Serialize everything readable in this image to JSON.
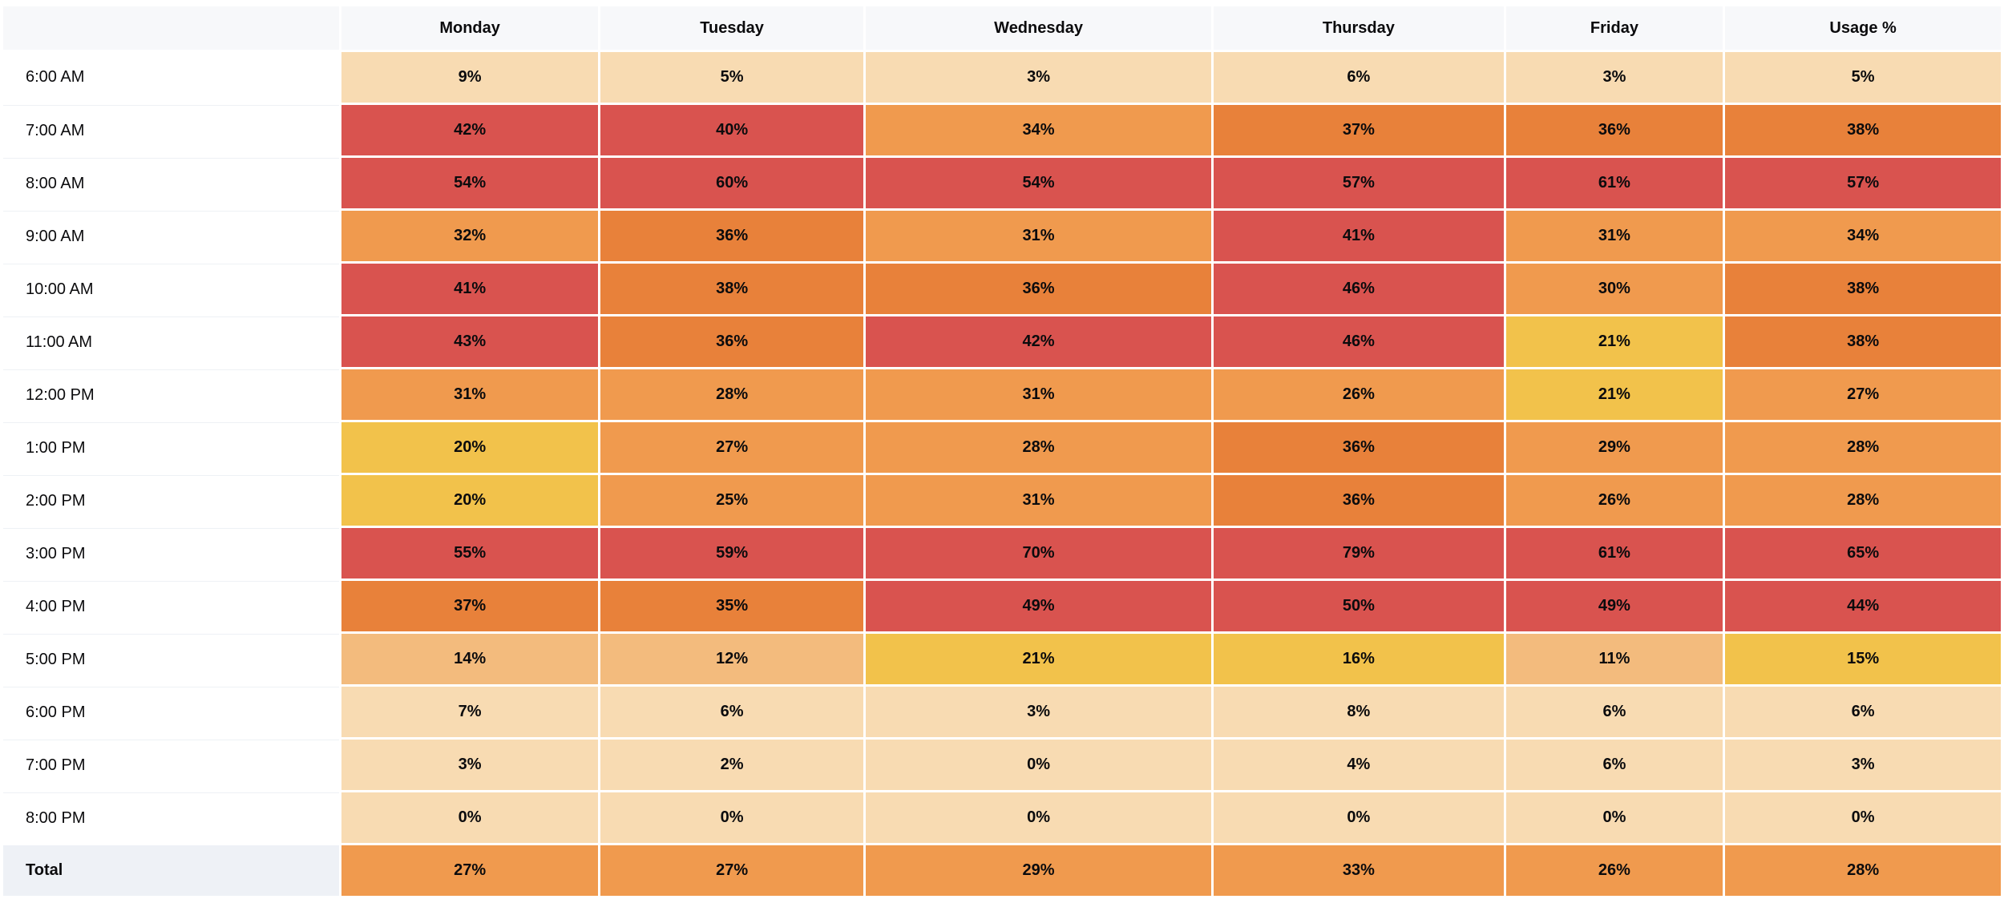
{
  "chart_data": {
    "type": "heatmap",
    "unit": "%",
    "columns": [
      "Monday",
      "Tuesday",
      "Wednesday",
      "Thursday",
      "Friday",
      "Usage %"
    ],
    "rows": [
      {
        "label": "6:00 AM",
        "values": [
          9,
          5,
          3,
          6,
          3,
          5
        ]
      },
      {
        "label": "7:00 AM",
        "values": [
          42,
          40,
          34,
          37,
          36,
          38
        ]
      },
      {
        "label": "8:00 AM",
        "values": [
          54,
          60,
          54,
          57,
          61,
          57
        ]
      },
      {
        "label": "9:00 AM",
        "values": [
          32,
          36,
          31,
          41,
          31,
          34
        ]
      },
      {
        "label": "10:00 AM",
        "values": [
          41,
          38,
          36,
          46,
          30,
          38
        ]
      },
      {
        "label": "11:00 AM",
        "values": [
          43,
          36,
          42,
          46,
          21,
          38
        ]
      },
      {
        "label": "12:00 PM",
        "values": [
          31,
          28,
          31,
          26,
          21,
          27
        ]
      },
      {
        "label": "1:00 PM",
        "values": [
          20,
          27,
          28,
          36,
          29,
          28
        ]
      },
      {
        "label": "2:00 PM",
        "values": [
          20,
          25,
          31,
          36,
          26,
          28
        ]
      },
      {
        "label": "3:00 PM",
        "values": [
          55,
          59,
          70,
          79,
          61,
          65
        ]
      },
      {
        "label": "4:00 PM",
        "values": [
          37,
          35,
          49,
          50,
          49,
          44
        ]
      },
      {
        "label": "5:00 PM",
        "values": [
          14,
          12,
          21,
          16,
          11,
          15
        ]
      },
      {
        "label": "6:00 PM",
        "values": [
          7,
          6,
          3,
          8,
          6,
          6
        ]
      },
      {
        "label": "7:00 PM",
        "values": [
          3,
          2,
          0,
          4,
          6,
          3
        ]
      },
      {
        "label": "8:00 PM",
        "values": [
          0,
          0,
          0,
          0,
          0,
          0
        ]
      },
      {
        "label": "Total",
        "values": [
          27,
          27,
          29,
          33,
          26,
          28
        ],
        "is_total": true
      }
    ],
    "color_scale": [
      {
        "max": 9,
        "color": "#f8dbb2"
      },
      {
        "max": 14,
        "color": "#f3bb7d"
      },
      {
        "max": 24,
        "color": "#f2c24b"
      },
      {
        "max": 34,
        "color": "#f09a4e"
      },
      {
        "max": 39,
        "color": "#e8813a"
      },
      {
        "max": 100,
        "color": "#d9534f"
      }
    ],
    "layout": {
      "grid": "off",
      "legend": "none",
      "value_text_color": "#0b0b0d",
      "header_background": "#f7f8fa",
      "total_label_background": "#eef1f6",
      "row_label_background": "#ffffff"
    }
  }
}
